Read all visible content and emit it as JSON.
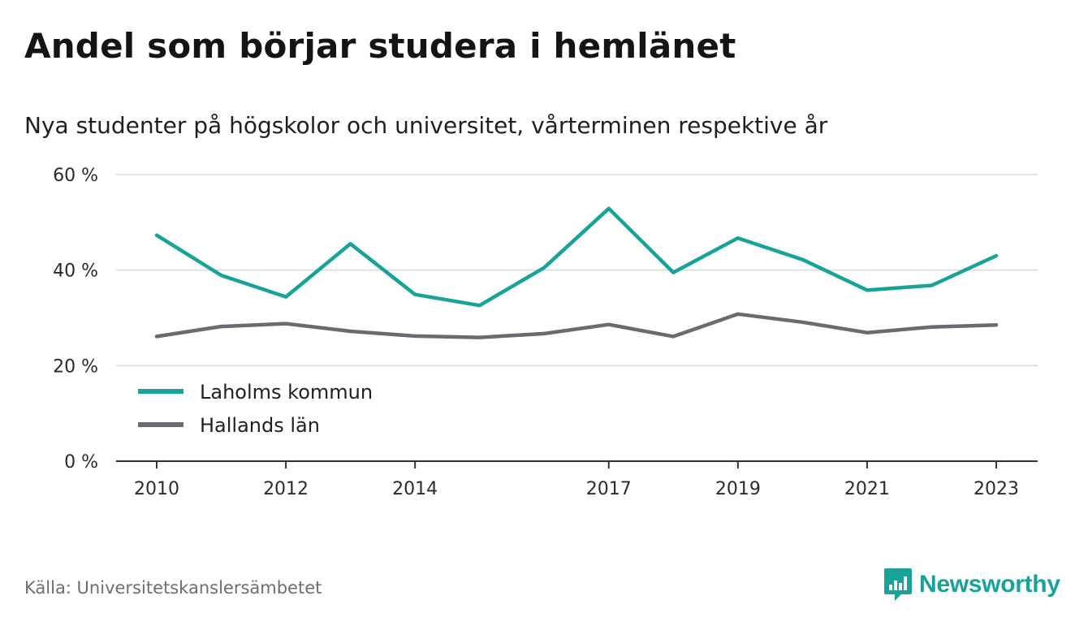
{
  "title": "Andel som börjar studera i hemlänet",
  "subtitle": "Nya studenter på högskolor och universitet, vårterminen respektive år",
  "source": "Källa: Universitetskanslersämbetet",
  "brand": {
    "name": "Newsworthy",
    "icon": "newsworthy-logo-icon",
    "color": "#17a398"
  },
  "chart_data": {
    "type": "line",
    "x": [
      2010,
      2011,
      2012,
      2013,
      2014,
      2015,
      2016,
      2017,
      2018,
      2019,
      2020,
      2021,
      2022,
      2023
    ],
    "x_tick_labels": [
      "2010",
      "2012",
      "2014",
      "2017",
      "2019",
      "2021",
      "2023"
    ],
    "y_ticks": [
      0,
      20,
      40,
      60
    ],
    "y_tick_labels": [
      "0 %",
      "20 %",
      "40 %",
      "60 %"
    ],
    "ylim": [
      0,
      60
    ],
    "grid": true,
    "legend_position": "bottom-left",
    "series": [
      {
        "name": "Laholms kommun",
        "color": "#17a398",
        "values": [
          47.3,
          38.9,
          34.4,
          45.5,
          34.9,
          32.6,
          40.5,
          52.9,
          39.5,
          46.7,
          42.2,
          35.8,
          36.8,
          43.0
        ]
      },
      {
        "name": "Hallands län",
        "color": "#6b6a72",
        "values": [
          26.1,
          28.2,
          28.8,
          27.2,
          26.2,
          25.9,
          26.7,
          28.6,
          26.1,
          30.8,
          29.1,
          26.9,
          28.1,
          28.5
        ]
      }
    ]
  }
}
